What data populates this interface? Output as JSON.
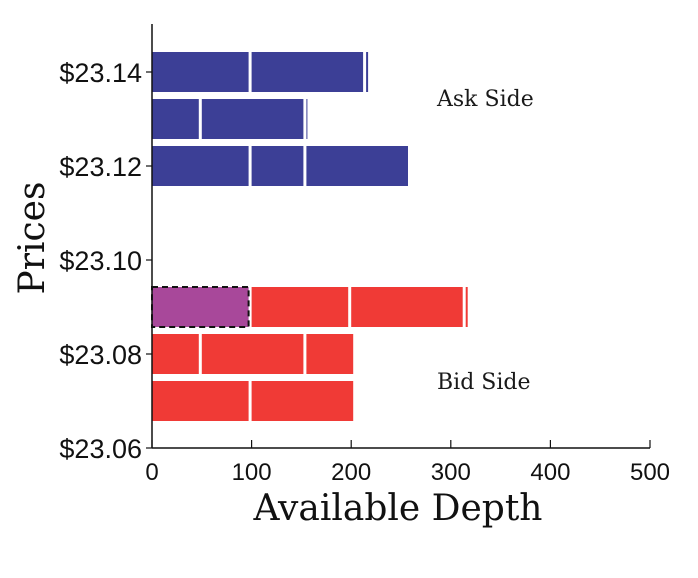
{
  "chart_data": {
    "type": "bar",
    "orientation": "horizontal",
    "stacked": true,
    "xlabel": "Available Depth",
    "ylabel": "Prices",
    "xlim": [
      0,
      500
    ],
    "xticks": [
      "0",
      "100",
      "200",
      "300",
      "400",
      "500"
    ],
    "yticks": [
      "$23.14",
      "$23.12",
      "$23.10",
      "$23.08",
      "$23.06"
    ],
    "grid": false,
    "annotations": [
      {
        "text": "Ask Side",
        "side": "ask"
      },
      {
        "text": "Bid Side",
        "side": "bid"
      }
    ],
    "colors": {
      "ask": "#3c3f96",
      "bid": "#f03a36",
      "highlight": "#a8489a"
    },
    "levels": [
      {
        "price": 23.14,
        "side": "ask",
        "orders": [
          100,
          115,
          5
        ]
      },
      {
        "price": 23.13,
        "side": "ask",
        "orders": [
          50,
          105,
          2
        ]
      },
      {
        "price": 23.12,
        "side": "ask",
        "orders": [
          100,
          55,
          105
        ]
      },
      {
        "price": 23.09,
        "side": "bid",
        "orders": [
          100,
          100,
          115,
          5
        ],
        "highlight_order": 0
      },
      {
        "price": 23.08,
        "side": "bid",
        "orders": [
          50,
          105,
          50
        ]
      },
      {
        "price": 23.07,
        "side": "bid",
        "orders": [
          100,
          105
        ]
      }
    ]
  }
}
